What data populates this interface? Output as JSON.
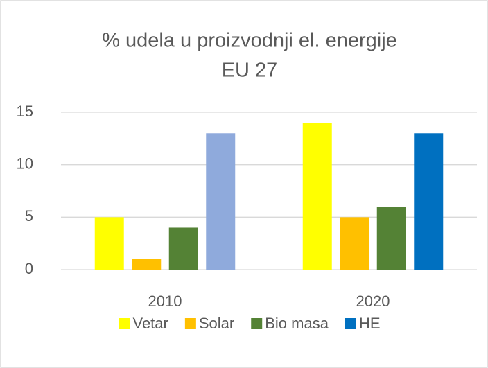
{
  "chart_data": {
    "type": "bar",
    "title": [
      "% udela u proizvodnji el. energije",
      "EU 27"
    ],
    "categories": [
      "2010",
      "2020"
    ],
    "series": [
      {
        "name": "Vetar",
        "color": "#ffff00",
        "values": [
          5,
          14
        ]
      },
      {
        "name": "Solar",
        "color": "#ffc000",
        "values": [
          1,
          5
        ]
      },
      {
        "name": "Bio masa",
        "color": "#548235",
        "values": [
          4,
          6
        ]
      },
      {
        "name": "HE",
        "color": "#0070c0",
        "point_colors": [
          "#8faadc",
          "#0070c0"
        ],
        "values": [
          13,
          13
        ]
      }
    ],
    "ylim": [
      0,
      15
    ],
    "yticks": [
      0,
      5,
      10,
      15
    ],
    "grid": true,
    "legend": "bottom"
  }
}
